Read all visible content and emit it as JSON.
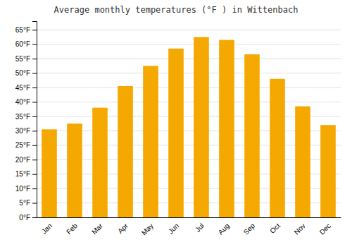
{
  "chart_data": {
    "type": "bar",
    "title": "Average monthly temperatures (°F ) in Wittenbach",
    "categories": [
      "Jan",
      "Feb",
      "Mar",
      "Apr",
      "May",
      "Jun",
      "Jul",
      "Aug",
      "Sep",
      "Oct",
      "Nov",
      "Dec"
    ],
    "values": [
      30.5,
      32.5,
      38.0,
      45.5,
      52.5,
      58.5,
      62.5,
      61.5,
      56.5,
      48.0,
      38.5,
      32.0
    ],
    "color": "#F5A800",
    "ylim": [
      0,
      68
    ],
    "yticks": [
      {
        "value": 0,
        "label": "0°F"
      },
      {
        "value": 5,
        "label": "5°F"
      },
      {
        "value": 10,
        "label": "10°F"
      },
      {
        "value": 15,
        "label": "15°F"
      },
      {
        "value": 20,
        "label": "20°F"
      },
      {
        "value": 25,
        "label": "25°F"
      },
      {
        "value": 30,
        "label": "30°F"
      },
      {
        "value": 35,
        "label": "35°F"
      },
      {
        "value": 40,
        "label": "40°F"
      },
      {
        "value": 45,
        "label": "45°F"
      },
      {
        "value": 50,
        "label": "50°F"
      },
      {
        "value": 55,
        "label": "55°F"
      },
      {
        "value": 60,
        "label": "60°F"
      },
      {
        "value": 65,
        "label": "65°F"
      }
    ],
    "grid": true
  }
}
